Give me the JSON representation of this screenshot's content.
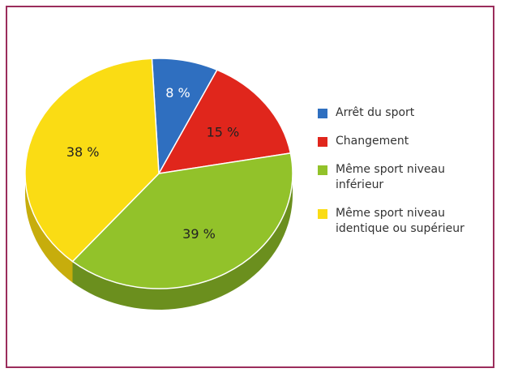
{
  "chart_data": {
    "type": "pie",
    "title": "",
    "slices": [
      {
        "label": "Arrêt du sport",
        "value": 8,
        "display": "8 %",
        "color": "#2f6fc0",
        "side_color": "#214f8a",
        "label_color": "light"
      },
      {
        "label": "Changement",
        "value": 15,
        "display": "15 %",
        "color": "#e0261c",
        "side_color": "#9c1a13",
        "label_color": "dark"
      },
      {
        "label": "Même sport niveau\ninférieur",
        "value": 39,
        "display": "39 %",
        "color": "#92c22a",
        "side_color": "#6b8f1e",
        "label_color": "dark"
      },
      {
        "label": "Même sport niveau\nidentique ou supérieur",
        "value": 38,
        "display": "38 %",
        "color": "#fadc14",
        "side_color": "#c7ad0c",
        "label_color": "dark"
      }
    ],
    "legend_position": "right"
  }
}
